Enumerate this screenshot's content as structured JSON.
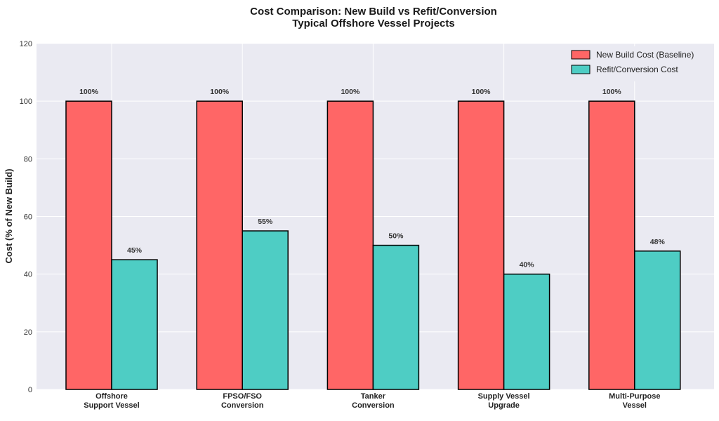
{
  "chart_data": {
    "type": "bar",
    "title": [
      "Cost Comparison: New Build vs Refit/Conversion",
      "Typical Offshore Vessel Projects"
    ],
    "xlabel": "",
    "ylabel": "Cost (% of New Build)",
    "ylim": [
      0,
      120
    ],
    "yticks": [
      "0",
      "20",
      "40",
      "60",
      "80",
      "100",
      "120"
    ],
    "grid": true,
    "legend_position": "top-right",
    "categories": [
      [
        "Offshore",
        "Support Vessel"
      ],
      [
        "FPSO/FSO",
        "Conversion"
      ],
      [
        "Tanker",
        "Conversion"
      ],
      [
        "Supply Vessel",
        "Upgrade"
      ],
      [
        "Multi-Purpose",
        "Vessel"
      ]
    ],
    "series": [
      {
        "name": "New Build Cost (Baseline)",
        "color": "#ff6666",
        "values": [
          100,
          100,
          100,
          100,
          100
        ],
        "labels": [
          "100%",
          "100%",
          "100%",
          "100%",
          "100%"
        ]
      },
      {
        "name": "Refit/Conversion Cost",
        "color": "#4ecdc4",
        "values": [
          45,
          55,
          50,
          40,
          48
        ],
        "labels": [
          "45%",
          "55%",
          "50%",
          "40%",
          "48%"
        ]
      }
    ],
    "colors": {
      "plot_bg": "#eaeaf2",
      "grid": "#ffffff",
      "bar_edge": "#000000"
    }
  }
}
